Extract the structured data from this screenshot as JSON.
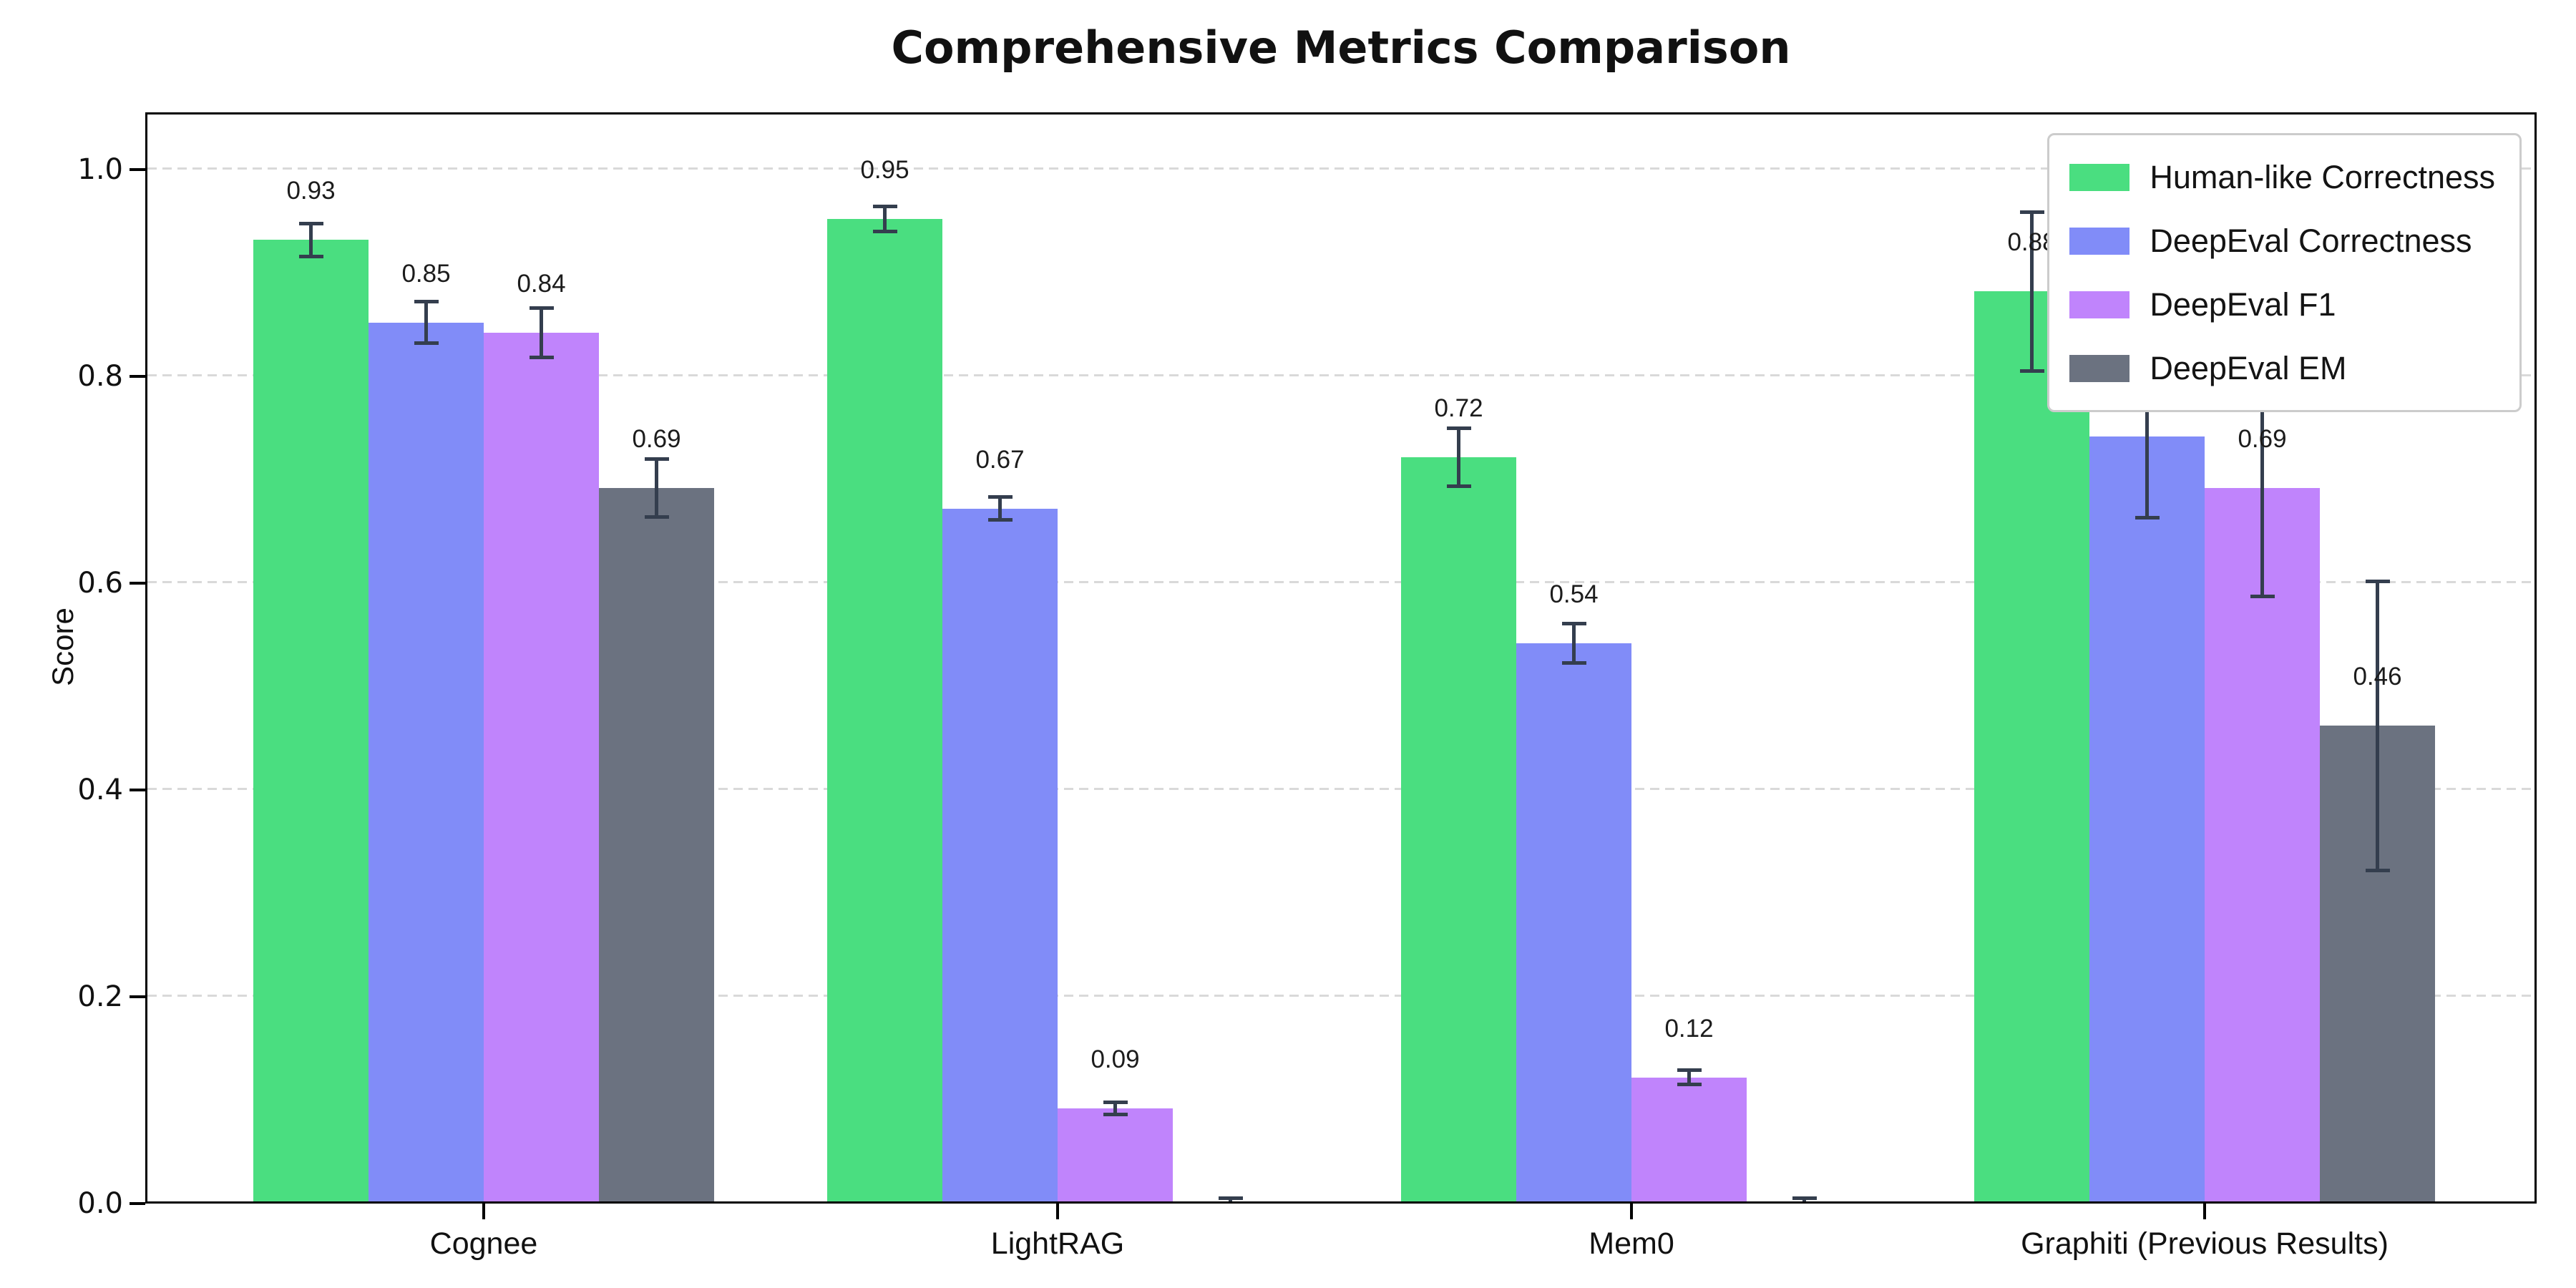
{
  "chart_data": {
    "type": "bar",
    "title": "Comprehensive Metrics Comparison",
    "ylabel": "Score",
    "xlabel": "",
    "categories": [
      "Cognee",
      "LightRAG",
      "Mem0",
      "Graphiti (Previous Results)"
    ],
    "series": [
      {
        "name": "Human-like Correctness",
        "color": "#4ade80",
        "values": [
          0.93,
          0.95,
          0.72,
          0.88
        ],
        "errors": [
          0.016,
          0.012,
          0.028,
          0.077
        ],
        "labels": [
          "0.93",
          "0.95",
          "0.72",
          "0.88"
        ]
      },
      {
        "name": "DeepEval Correctness",
        "color": "#818cf8",
        "values": [
          0.85,
          0.67,
          0.54,
          0.74
        ],
        "errors": [
          0.02,
          0.011,
          0.019,
          0.079
        ],
        "labels": [
          "0.85",
          "0.67",
          "0.54",
          "0.74"
        ]
      },
      {
        "name": "DeepEval F1",
        "color": "#c084fc",
        "values": [
          0.84,
          0.09,
          0.12,
          0.69
        ],
        "errors": [
          0.024,
          0.006,
          0.007,
          0.105
        ],
        "labels": [
          "0.84",
          "0.09",
          "0.12",
          "0.69"
        ]
      },
      {
        "name": "DeepEval EM",
        "color": "#6b7280",
        "values": [
          0.69,
          0.0,
          0.0,
          0.46
        ],
        "errors": [
          0.028,
          0.003,
          0.003,
          0.14
        ],
        "labels": [
          "0.69",
          null,
          null,
          "0.46"
        ]
      }
    ],
    "ytick_labels": [
      "0.0",
      "0.2",
      "0.4",
      "0.6",
      "0.8",
      "1.0"
    ],
    "yticks": [
      0.0,
      0.2,
      0.4,
      0.6,
      0.8,
      1.0
    ],
    "ylim": [
      0,
      1.05
    ],
    "grid": "horizontal-dashed",
    "legend_position": "upper-right",
    "colors": {
      "error_bar": "#343e4e",
      "grid_line": "#d9d9d9",
      "axis": "#000000",
      "label_text": "#1c1c1c"
    }
  }
}
